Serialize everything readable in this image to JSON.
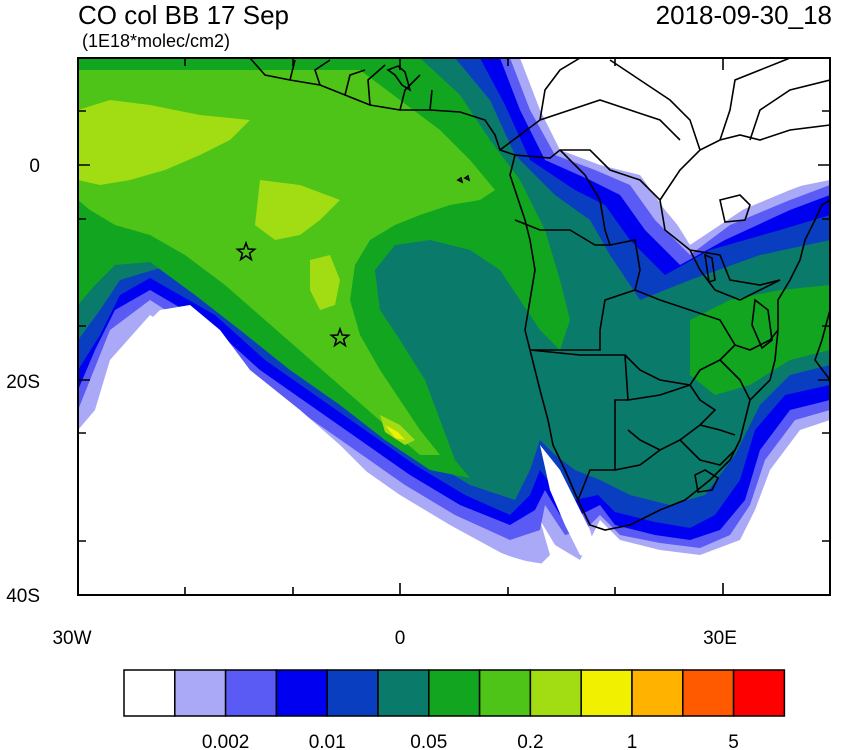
{
  "header": {
    "title": "CO col BB 17 Sep",
    "units": "(1E18*molec/cm2)",
    "timestamp": "2018-09-30_18"
  },
  "map": {
    "lon_range": [
      -30,
      40
    ],
    "lat_range": [
      -40,
      10
    ],
    "x_ticks": [
      "30W",
      "0",
      "30E"
    ],
    "y_ticks": [
      "0",
      "20S",
      "40S"
    ],
    "markers": [
      {
        "name": "star",
        "lon": -14.5,
        "lat": -8
      },
      {
        "name": "star",
        "lon": -5.7,
        "lat": -16
      }
    ],
    "land_color": "#ffffff",
    "border_color": "#000000"
  },
  "colorbar": {
    "colors": [
      "#ffffff",
      "#a9a9f7",
      "#5a5af5",
      "#0000f0",
      "#0a3ec0",
      "#0a7a6a",
      "#12a520",
      "#4ec418",
      "#a2dc12",
      "#f0f000",
      "#ffb200",
      "#ff5a00",
      "#ff0000"
    ],
    "labels": [
      {
        "text": "0.002",
        "after_box": 2
      },
      {
        "text": "0.01",
        "after_box": 4
      },
      {
        "text": "0.05",
        "after_box": 6
      },
      {
        "text": "0.2",
        "after_box": 8
      },
      {
        "text": "1",
        "after_box": 10
      },
      {
        "text": "5",
        "after_box": 12
      }
    ]
  }
}
